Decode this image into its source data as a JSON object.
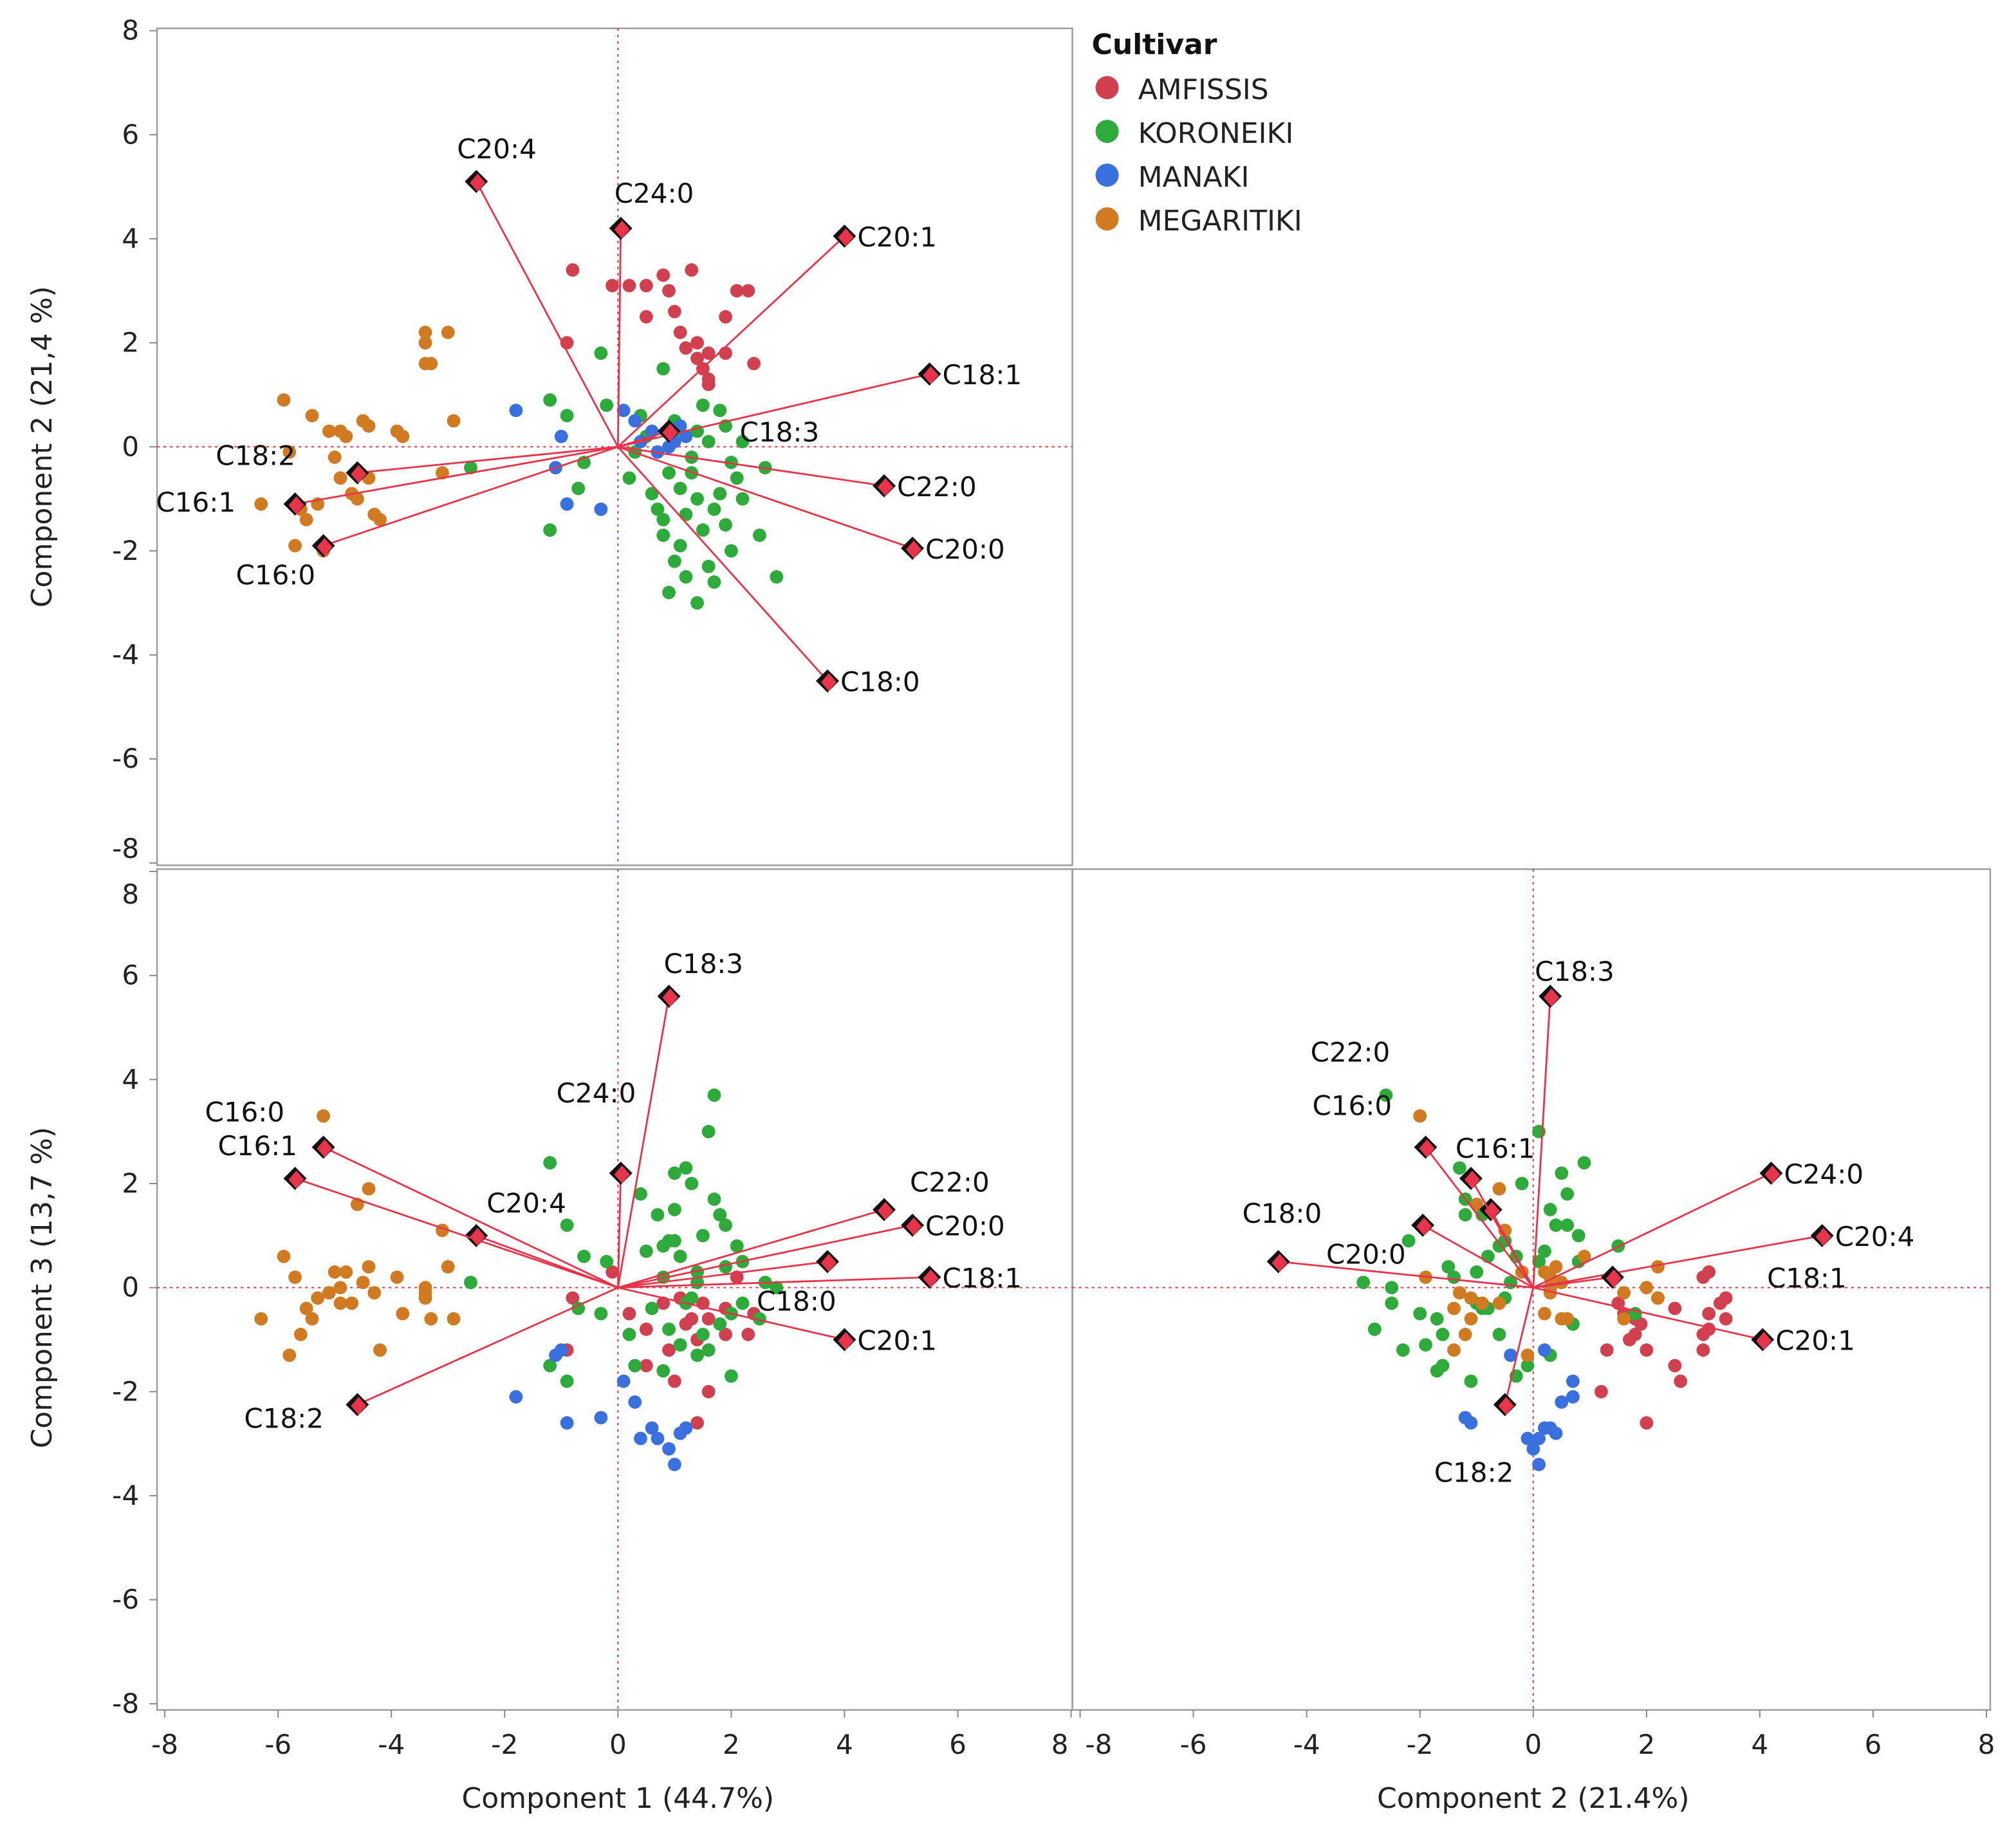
{
  "chart_data": {
    "type": "scatter",
    "subtype": "PCA biplot matrix",
    "legend": {
      "title": "Cultivar",
      "placement": "top-right",
      "entries": [
        {
          "name": "AMFISSIS",
          "color": "#d0404f"
        },
        {
          "name": "KORONEIKI",
          "color": "#2eaa3a"
        },
        {
          "name": "MANAKI",
          "color": "#3a6fde"
        },
        {
          "name": "MEGARITIKI",
          "color": "#d07a22"
        }
      ]
    },
    "axis_titles": {
      "pc1": "Component 1  (44.7%)",
      "pc2_left": "Component 2  (21,4 %)",
      "pc2_bottom": "Component 2  (21.4%)",
      "pc3_left": "Component 3  (13,7 %)"
    },
    "axis_range": [
      -8,
      8
    ],
    "ticks": [
      "-8",
      "-6",
      "-4",
      "-2",
      "0",
      "2",
      "4",
      "6",
      "8"
    ],
    "panels": [
      {
        "x": "pc1",
        "y": "pc2"
      },
      {
        "x": "pc1",
        "y": "pc3"
      },
      {
        "x": "pc2",
        "y": "pc3"
      }
    ],
    "loadings": [
      {
        "name": "C20:4",
        "pc1": -2.5,
        "pc2": 5.1,
        "pc3": 1.0
      },
      {
        "name": "C24:0",
        "pc1": 0.05,
        "pc2": 4.2,
        "pc3": 2.2
      },
      {
        "name": "C20:1",
        "pc1": 4.0,
        "pc2": 4.05,
        "pc3": -1.0
      },
      {
        "name": "C18:1",
        "pc1": 5.5,
        "pc2": 1.4,
        "pc3": 0.2
      },
      {
        "name": "C18:3",
        "pc1": 0.9,
        "pc2": 0.3,
        "pc3": 5.6
      },
      {
        "name": "C22:0",
        "pc1": 4.7,
        "pc2": -0.75,
        "pc3": 1.5
      },
      {
        "name": "C20:0",
        "pc1": 5.2,
        "pc2": -1.95,
        "pc3": 1.2
      },
      {
        "name": "C18:0",
        "pc1": 3.7,
        "pc2": -4.5,
        "pc3": 0.5
      },
      {
        "name": "C18:2",
        "pc1": -4.6,
        "pc2": -0.5,
        "pc3": -2.25
      },
      {
        "name": "C16:1",
        "pc1": -5.7,
        "pc2": -1.1,
        "pc3": 2.1
      },
      {
        "name": "C16:0",
        "pc1": -5.2,
        "pc2": -1.9,
        "pc3": 2.7
      }
    ],
    "scores": {
      "AMFISSIS": [
        [
          -0.8,
          3.4,
          -0.2
        ],
        [
          -0.1,
          3.1,
          0.3
        ],
        [
          0.2,
          3.1,
          -0.5
        ],
        [
          0.5,
          3.1,
          -0.8
        ],
        [
          0.8,
          3.3,
          -0.3
        ],
        [
          0.9,
          3.0,
          -1.2
        ],
        [
          1.0,
          2.6,
          -1.8
        ],
        [
          1.3,
          3.4,
          -0.6
        ],
        [
          2.1,
          3.0,
          0.2
        ],
        [
          2.3,
          3.0,
          -0.9
        ],
        [
          1.9,
          2.5,
          -0.4
        ],
        [
          1.4,
          2.0,
          -2.6
        ],
        [
          1.4,
          1.7,
          -1.0
        ],
        [
          1.6,
          1.8,
          -0.6
        ],
        [
          1.2,
          1.9,
          -0.7
        ],
        [
          1.5,
          1.5,
          -0.3
        ],
        [
          1.6,
          1.3,
          -1.2
        ],
        [
          1.9,
          1.8,
          -0.9
        ],
        [
          1.6,
          1.2,
          -2.0
        ],
        [
          -0.9,
          2.0,
          -1.2
        ],
        [
          0.5,
          2.5,
          -1.5
        ],
        [
          2.4,
          1.6,
          -0.5
        ],
        [
          1.1,
          2.2,
          -0.2
        ]
      ],
      "KORONEIKI": [
        [
          -1.2,
          0.9,
          2.4
        ],
        [
          -0.3,
          1.8,
          -0.5
        ],
        [
          -0.9,
          0.6,
          1.2
        ],
        [
          -0.2,
          0.8,
          0.5
        ],
        [
          0.8,
          1.5,
          0.8
        ],
        [
          1.5,
          0.8,
          1.0
        ],
        [
          1.0,
          0.3,
          1.5
        ],
        [
          1.3,
          -0.2,
          2.0
        ],
        [
          0.9,
          -0.5,
          0.9
        ],
        [
          1.1,
          -0.8,
          0.6
        ],
        [
          1.4,
          -1.0,
          0.3
        ],
        [
          1.7,
          -1.2,
          1.7
        ],
        [
          2.1,
          -0.6,
          0.8
        ],
        [
          2.6,
          -0.4,
          0.1
        ],
        [
          1.9,
          -1.5,
          0.4
        ],
        [
          2.0,
          -2.0,
          -0.5
        ],
        [
          1.6,
          -2.3,
          -1.2
        ],
        [
          1.2,
          -2.5,
          -0.3
        ],
        [
          0.9,
          -2.8,
          -0.8
        ],
        [
          1.4,
          -3.0,
          0.1
        ],
        [
          1.7,
          -2.6,
          3.7
        ],
        [
          2.8,
          -2.5,
          0.0
        ],
        [
          0.6,
          -0.9,
          -0.4
        ],
        [
          0.8,
          -1.4,
          0.2
        ],
        [
          1.1,
          -1.9,
          -1.1
        ],
        [
          1.5,
          -1.6,
          -0.9
        ],
        [
          1.3,
          -0.5,
          -0.2
        ],
        [
          2.2,
          0.1,
          0.5
        ],
        [
          1.9,
          0.4,
          1.2
        ],
        [
          0.5,
          0.2,
          0.7
        ],
        [
          0.3,
          -0.1,
          -1.5
        ],
        [
          -0.6,
          -0.3,
          0.6
        ],
        [
          -0.7,
          -0.8,
          -0.4
        ],
        [
          -1.2,
          -1.6,
          -1.5
        ],
        [
          -0.9,
          -1.1,
          -1.8
        ],
        [
          -2.6,
          -0.4,
          0.1
        ],
        [
          1.0,
          0.5,
          2.2
        ],
        [
          1.8,
          0.7,
          -0.7
        ],
        [
          2.2,
          -1.0,
          -0.3
        ],
        [
          0.7,
          -1.2,
          1.4
        ],
        [
          1.2,
          -1.3,
          2.3
        ],
        [
          1.6,
          0.1,
          3.0
        ],
        [
          0.4,
          0.6,
          1.8
        ],
        [
          2.5,
          -1.7,
          -0.6
        ],
        [
          1.0,
          -2.2,
          0.9
        ],
        [
          0.2,
          -0.6,
          -0.9
        ],
        [
          1.4,
          0.3,
          -1.3
        ],
        [
          0.8,
          -1.7,
          -1.6
        ],
        [
          1.8,
          -0.9,
          1.4
        ],
        [
          2.0,
          -0.3,
          -1.7
        ]
      ],
      "MANAKI": [
        [
          -1.8,
          0.7,
          -2.1
        ],
        [
          -1.0,
          0.2,
          -1.2
        ],
        [
          -1.1,
          -0.4,
          -1.3
        ],
        [
          -0.9,
          -1.1,
          -2.6
        ],
        [
          -0.3,
          -1.2,
          -2.5
        ],
        [
          0.1,
          0.7,
          -1.8
        ],
        [
          0.4,
          0.1,
          -2.9
        ],
        [
          0.6,
          0.3,
          -2.7
        ],
        [
          0.9,
          0.0,
          -3.1
        ],
        [
          1.0,
          0.1,
          -3.4
        ],
        [
          1.2,
          0.2,
          -2.7
        ],
        [
          0.7,
          -0.1,
          -2.9
        ],
        [
          0.3,
          0.5,
          -2.2
        ],
        [
          1.1,
          0.4,
          -2.8
        ]
      ],
      "MEGARITIKI": [
        [
          -6.3,
          -1.1,
          -0.6
        ],
        [
          -5.9,
          0.9,
          0.6
        ],
        [
          -5.8,
          -0.1,
          -1.3
        ],
        [
          -5.6,
          -1.2,
          -0.9
        ],
        [
          -5.5,
          -1.4,
          -0.4
        ],
        [
          -5.7,
          -1.9,
          0.2
        ],
        [
          -5.1,
          0.3,
          -0.1
        ],
        [
          -5.0,
          -0.2,
          0.3
        ],
        [
          -4.9,
          0.3,
          0.0
        ],
        [
          -4.9,
          -0.6,
          -0.3
        ],
        [
          -4.7,
          -0.9,
          -0.3
        ],
        [
          -4.6,
          -1.0,
          1.6
        ],
        [
          -4.5,
          0.5,
          0.1
        ],
        [
          -4.4,
          -0.6,
          1.9
        ],
        [
          -4.3,
          -1.3,
          -0.1
        ],
        [
          -4.2,
          -1.4,
          -1.2
        ],
        [
          -4.4,
          0.4,
          0.4
        ],
        [
          -3.9,
          0.3,
          0.2
        ],
        [
          -3.8,
          0.2,
          -0.5
        ],
        [
          -3.4,
          2.2,
          -0.2
        ],
        [
          -3.4,
          2.0,
          0.0
        ],
        [
          -3.4,
          1.6,
          -0.1
        ],
        [
          -3.3,
          1.6,
          -0.6
        ],
        [
          -3.0,
          2.2,
          0.4
        ],
        [
          -3.1,
          -0.5,
          1.1
        ],
        [
          -2.9,
          0.5,
          -0.6
        ],
        [
          -5.2,
          -2.0,
          3.3
        ],
        [
          -5.3,
          -1.1,
          -0.2
        ],
        [
          -5.4,
          0.6,
          -0.6
        ],
        [
          -4.8,
          0.2,
          0.3
        ]
      ]
    }
  }
}
